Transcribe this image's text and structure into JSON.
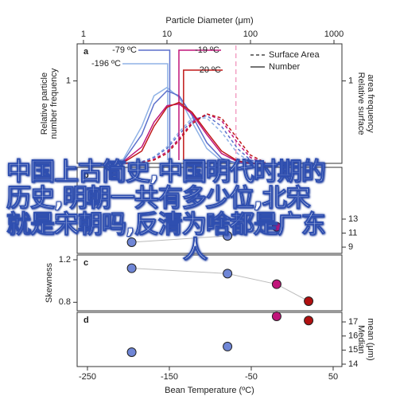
{
  "chart_data": [
    {
      "type": "line",
      "panel": "a",
      "xlabel": "Particle Diameter (μm)",
      "xscale": "log",
      "xlim": [
        0.84,
        1245
      ],
      "xticks": [
        1,
        10,
        100,
        1000
      ],
      "ylabel": [
        "Relative particle",
        "number frequency"
      ],
      "ylim": [
        0,
        1.45
      ],
      "yticks": [
        1
      ],
      "y2label": [
        "Relative surface",
        "area frequency"
      ],
      "y2lim": [
        0,
        1.45
      ],
      "y2ticks": [
        1
      ],
      "legend": [
        "Surface Area",
        "Number"
      ],
      "legend_corner": "top-right",
      "x": [
        2,
        3,
        5,
        7,
        10,
        14,
        20,
        30,
        45,
        70,
        100,
        150
      ],
      "series": [
        {
          "name": "-196 ºC",
          "color": "#8fb2e6",
          "median": 10.2,
          "values": [
            0,
            0.05,
            0.45,
            0.82,
            0.92,
            0.8,
            0.5,
            0.18,
            0.03,
            0,
            0,
            0
          ],
          "surface": [
            0,
            0,
            0.02,
            0.08,
            0.2,
            0.38,
            0.55,
            0.55,
            0.38,
            0.12,
            0.02,
            0
          ]
        },
        {
          "name": "-79 ºC",
          "color": "#5b6fcb",
          "median": 10.8,
          "values": [
            0,
            0.03,
            0.35,
            0.72,
            0.88,
            0.82,
            0.58,
            0.25,
            0.06,
            0,
            0,
            0
          ],
          "surface": [
            0,
            0,
            0.02,
            0.07,
            0.18,
            0.35,
            0.52,
            0.58,
            0.45,
            0.18,
            0.04,
            0
          ]
        },
        {
          "name": "-19 ºC",
          "color": "#c0157a",
          "median": 13.9,
          "values": [
            0,
            0.02,
            0.2,
            0.5,
            0.7,
            0.72,
            0.6,
            0.35,
            0.12,
            0.02,
            0,
            0
          ],
          "surface": [
            0,
            0,
            0.01,
            0.05,
            0.14,
            0.3,
            0.5,
            0.6,
            0.52,
            0.25,
            0.07,
            0
          ]
        },
        {
          "name": "20 ºC",
          "color": "#c01818",
          "median": 15.8,
          "values": [
            0,
            0.01,
            0.15,
            0.45,
            0.68,
            0.74,
            0.62,
            0.38,
            0.15,
            0.03,
            0,
            0
          ],
          "surface": [
            0,
            0,
            0.01,
            0.04,
            0.12,
            0.28,
            0.48,
            0.6,
            0.55,
            0.3,
            0.1,
            0.01
          ]
        }
      ],
      "surface_median": 67,
      "surface_median_color": "#f08cb8"
    },
    {
      "type": "scatter",
      "panel": "b",
      "ytick_side": "right",
      "fit_line": true,
      "x": [
        -196,
        -79,
        -19,
        20
      ],
      "values": [
        9.7,
        10.6,
        11.9,
        null
      ],
      "colors": [
        "#6f86d6",
        "#6f86d6",
        "#c0157a",
        "#b01010"
      ],
      "xlim": [
        -262.6,
        60.7
      ],
      "ylim": [
        8.1,
        20.4
      ],
      "yticks": [
        9,
        11,
        13
      ]
    },
    {
      "type": "scatter",
      "panel": "c",
      "ylabel": [
        "Skewness"
      ],
      "ytick_side": "left",
      "fit_line": true,
      "x": [
        -196,
        -79,
        -19,
        20
      ],
      "values": [
        1.12,
        1.07,
        0.97,
        0.81
      ],
      "colors": [
        "#6f86d6",
        "#6f86d6",
        "#c0157a",
        "#b01010"
      ],
      "xlim": [
        -262.6,
        60.7
      ],
      "ylim": [
        0.72,
        1.245
      ],
      "yticks": [
        0.8,
        1.2
      ]
    },
    {
      "type": "scatter",
      "panel": "d",
      "y2label": [
        "Median",
        "mean (μm)"
      ],
      "ytick_side": "right",
      "fit_line": false,
      "x": [
        -196,
        -79,
        -19,
        20
      ],
      "values": [
        14.85,
        15.25,
        17.4,
        17.1
      ],
      "colors": [
        "#6f86d6",
        "#6f86d6",
        "#c0157a",
        "#b01010"
      ],
      "xlim": [
        -262.6,
        60.7
      ],
      "xticks": [
        -250,
        -150,
        -50,
        50
      ],
      "xlabel": "Bean Temperature (ºC)",
      "ylim": [
        13.83,
        17.68
      ],
      "yticks": [
        14,
        15,
        16,
        17
      ]
    }
  ],
  "overlay_text": [
    "中国上古简史,中国明代时期的",
    "历史,明朝一共有多少位,北宋",
    "就是宋朝吗,反清为啥都是广东",
    "人"
  ]
}
